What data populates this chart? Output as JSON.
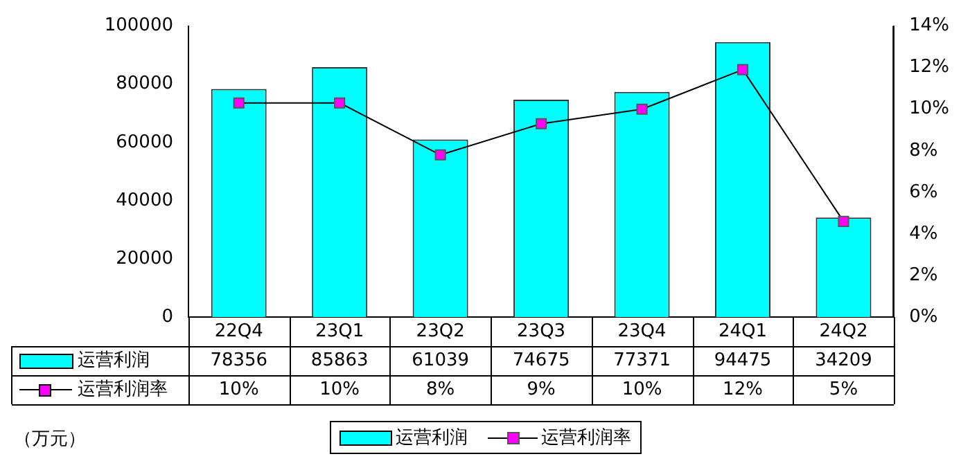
{
  "chart_data": {
    "type": "bar",
    "categories": [
      "22Q4",
      "23Q1",
      "23Q2",
      "23Q3",
      "23Q4",
      "24Q1",
      "24Q2"
    ],
    "series": [
      {
        "name": "运营利润",
        "color": "#00ffff",
        "values": [
          78356,
          85863,
          61039,
          74675,
          77371,
          94475,
          34209
        ],
        "value_labels": [
          "78356",
          "85863",
          "61039",
          "74675",
          "77371",
          "94475",
          "34209"
        ]
      },
      {
        "name": "运营利润率",
        "type": "line",
        "axis": "y2",
        "color": "#ff00ff",
        "values": [
          10.3,
          10.3,
          7.8,
          9.3,
          10.0,
          11.9,
          4.6
        ],
        "value_labels": [
          "10%",
          "10%",
          "8%",
          "9%",
          "10%",
          "12%",
          "5%"
        ]
      }
    ],
    "ylim": [
      0,
      100000
    ],
    "yticks": [
      0,
      20000,
      40000,
      60000,
      80000,
      100000
    ],
    "y2lim": [
      0,
      14
    ],
    "y2ticks": [
      {
        "value": 0,
        "label": "0%"
      },
      {
        "value": 2,
        "label": "2%"
      },
      {
        "value": 4,
        "label": "4%"
      },
      {
        "value": 6,
        "label": "6%"
      },
      {
        "value": 8,
        "label": "8%"
      },
      {
        "value": 10,
        "label": "10%"
      },
      {
        "value": 12,
        "label": "12%"
      },
      {
        "value": 14,
        "label": "14%"
      }
    ],
    "grid": false,
    "legend": "bottom",
    "marker": "square",
    "line_style": "solid",
    "annotations": [
      "（万元）"
    ]
  }
}
